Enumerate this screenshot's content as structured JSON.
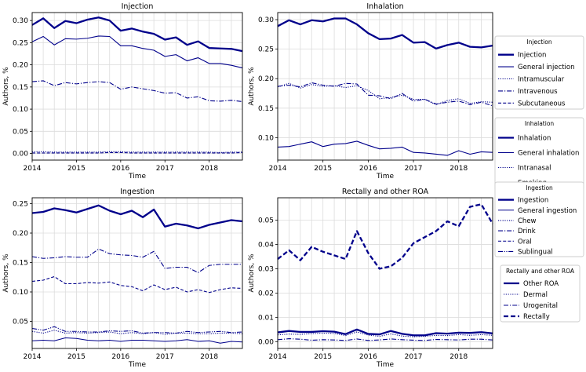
{
  "colors": {
    "series": "#00008b",
    "grid": "#dcdcdc",
    "frame": "#000000",
    "legend_border": "#cccccc"
  },
  "chart_data": [
    {
      "type": "line",
      "title": "Injection",
      "xlabel": "Time",
      "ylabel": "Authors, %",
      "xlim": [
        2014.0,
        2018.75
      ],
      "ylim": [
        -0.015,
        0.318
      ],
      "xticks": [
        2014,
        2015,
        2016,
        2017,
        2018
      ],
      "yticks": [
        0.0,
        0.05,
        0.1,
        0.15,
        0.2,
        0.25,
        0.3
      ],
      "ytick_labels": [
        "0.00",
        "0.05",
        "0.10",
        "0.15",
        "0.20",
        "0.25",
        "0.30"
      ],
      "x": [
        2014.0,
        2014.25,
        2014.5,
        2014.75,
        2015.0,
        2015.25,
        2015.5,
        2015.75,
        2016.0,
        2016.25,
        2016.5,
        2016.75,
        2017.0,
        2017.25,
        2017.5,
        2017.75,
        2018.0,
        2018.25,
        2018.5,
        2018.75
      ],
      "legend_title": "Injection",
      "series": [
        {
          "name": "Injection",
          "style": "bold",
          "values": [
            0.29,
            0.305,
            0.283,
            0.299,
            0.294,
            0.302,
            0.307,
            0.3,
            0.277,
            0.282,
            0.275,
            0.27,
            0.257,
            0.262,
            0.245,
            0.253,
            0.238,
            0.237,
            0.236,
            0.231
          ]
        },
        {
          "name": "General injection",
          "style": "solid",
          "values": [
            0.252,
            0.264,
            0.245,
            0.259,
            0.258,
            0.26,
            0.265,
            0.264,
            0.243,
            0.243,
            0.237,
            0.233,
            0.219,
            0.223,
            0.209,
            0.216,
            0.203,
            0.203,
            0.199,
            0.193
          ]
        },
        {
          "name": "Intramuscular",
          "style": "dotted",
          "values": [
            0.004,
            0.004,
            0.003,
            0.003,
            0.003,
            0.003,
            0.003,
            0.004,
            0.004,
            0.003,
            0.003,
            0.003,
            0.003,
            0.003,
            0.003,
            0.003,
            0.003,
            0.002,
            0.003,
            0.003
          ]
        },
        {
          "name": "Intravenous",
          "style": "dashdot",
          "values": [
            0.162,
            0.164,
            0.153,
            0.16,
            0.157,
            0.16,
            0.162,
            0.16,
            0.145,
            0.15,
            0.146,
            0.142,
            0.136,
            0.137,
            0.125,
            0.128,
            0.119,
            0.118,
            0.12,
            0.117
          ]
        },
        {
          "name": "Subcutaneous",
          "style": "dashed",
          "values": [
            0.001,
            0.001,
            0.001,
            0.001,
            0.001,
            0.001,
            0.001,
            0.002,
            0.002,
            0.001,
            0.001,
            0.001,
            0.001,
            0.001,
            0.001,
            0.001,
            0.001,
            0.001,
            0.001,
            0.002
          ]
        }
      ]
    },
    {
      "type": "line",
      "title": "Inhalation",
      "xlabel": "Time",
      "ylabel": "Authors, %",
      "xlim": [
        2014.0,
        2018.75
      ],
      "ylim": [
        0.062,
        0.312
      ],
      "xticks": [
        2014,
        2015,
        2016,
        2017,
        2018
      ],
      "yticks": [
        0.1,
        0.15,
        0.2,
        0.25,
        0.3
      ],
      "ytick_labels": [
        "0.10",
        "0.15",
        "0.20",
        "0.25",
        "0.30"
      ],
      "x": [
        2014.0,
        2014.25,
        2014.5,
        2014.75,
        2015.0,
        2015.25,
        2015.5,
        2015.75,
        2016.0,
        2016.25,
        2016.5,
        2016.75,
        2017.0,
        2017.25,
        2017.5,
        2017.75,
        2018.0,
        2018.25,
        2018.5,
        2018.75
      ],
      "legend_title": "Inhalation",
      "series": [
        {
          "name": "Inhalation",
          "style": "bold",
          "values": [
            0.289,
            0.299,
            0.292,
            0.299,
            0.297,
            0.302,
            0.302,
            0.292,
            0.277,
            0.267,
            0.268,
            0.274,
            0.261,
            0.262,
            0.251,
            0.257,
            0.261,
            0.254,
            0.253,
            0.256
          ]
        },
        {
          "name": "General inhalation",
          "style": "solid",
          "values": [
            0.084,
            0.085,
            0.089,
            0.093,
            0.085,
            0.089,
            0.09,
            0.094,
            0.087,
            0.081,
            0.082,
            0.084,
            0.075,
            0.074,
            0.072,
            0.07,
            0.078,
            0.072,
            0.076,
            0.075
          ]
        },
        {
          "name": "Intranasal",
          "style": "dotted",
          "values": [
            0.186,
            0.192,
            0.184,
            0.19,
            0.187,
            0.188,
            0.185,
            0.188,
            0.18,
            0.166,
            0.168,
            0.172,
            0.165,
            0.165,
            0.156,
            0.163,
            0.166,
            0.158,
            0.161,
            0.16
          ]
        },
        {
          "name": "Smoking",
          "style": "dashdot",
          "values": [
            0.187,
            0.189,
            0.186,
            0.193,
            0.189,
            0.187,
            0.192,
            0.191,
            0.172,
            0.171,
            0.166,
            0.175,
            0.162,
            0.165,
            0.157,
            0.16,
            0.162,
            0.156,
            0.16,
            0.154
          ]
        }
      ]
    },
    {
      "type": "line",
      "title": "Ingestion",
      "xlabel": "Time",
      "ylabel": "Authors, %",
      "xlim": [
        2014.0,
        2018.75
      ],
      "ylim": [
        0.004,
        0.26
      ],
      "xticks": [
        2014,
        2015,
        2016,
        2017,
        2018
      ],
      "yticks": [
        0.05,
        0.1,
        0.15,
        0.2,
        0.25
      ],
      "ytick_labels": [
        "0.05",
        "0.10",
        "0.15",
        "0.20",
        "0.25"
      ],
      "x": [
        2014.0,
        2014.25,
        2014.5,
        2014.75,
        2015.0,
        2015.25,
        2015.5,
        2015.75,
        2016.0,
        2016.25,
        2016.5,
        2016.75,
        2017.0,
        2017.25,
        2017.5,
        2017.75,
        2018.0,
        2018.25,
        2018.5,
        2018.75
      ],
      "legend_title": "Ingestion",
      "series": [
        {
          "name": "Ingestion",
          "style": "bold",
          "values": [
            0.234,
            0.236,
            0.242,
            0.239,
            0.235,
            0.241,
            0.247,
            0.238,
            0.232,
            0.238,
            0.227,
            0.24,
            0.211,
            0.216,
            0.213,
            0.208,
            0.214,
            0.218,
            0.222,
            0.22
          ]
        },
        {
          "name": "General ingestion",
          "style": "solid",
          "values": [
            0.017,
            0.018,
            0.017,
            0.022,
            0.021,
            0.018,
            0.017,
            0.018,
            0.016,
            0.018,
            0.018,
            0.017,
            0.016,
            0.017,
            0.019,
            0.016,
            0.017,
            0.013,
            0.016,
            0.015
          ]
        },
        {
          "name": "Chew",
          "style": "dotted",
          "values": [
            0.033,
            0.03,
            0.035,
            0.03,
            0.031,
            0.03,
            0.031,
            0.032,
            0.029,
            0.031,
            0.029,
            0.031,
            0.028,
            0.03,
            0.03,
            0.029,
            0.029,
            0.03,
            0.03,
            0.029
          ]
        },
        {
          "name": "Drink",
          "style": "dashdot",
          "values": [
            0.16,
            0.157,
            0.158,
            0.16,
            0.159,
            0.159,
            0.173,
            0.165,
            0.163,
            0.162,
            0.159,
            0.169,
            0.14,
            0.142,
            0.142,
            0.133,
            0.145,
            0.147,
            0.147,
            0.147
          ]
        },
        {
          "name": "Oral",
          "style": "dashed",
          "values": [
            0.118,
            0.12,
            0.126,
            0.114,
            0.114,
            0.116,
            0.115,
            0.117,
            0.111,
            0.109,
            0.102,
            0.112,
            0.104,
            0.108,
            0.1,
            0.104,
            0.099,
            0.104,
            0.107,
            0.106
          ]
        },
        {
          "name": "Sublingual",
          "style": "dashdotdot",
          "values": [
            0.038,
            0.035,
            0.041,
            0.033,
            0.033,
            0.032,
            0.032,
            0.034,
            0.033,
            0.034,
            0.03,
            0.031,
            0.031,
            0.03,
            0.033,
            0.031,
            0.032,
            0.033,
            0.031,
            0.032
          ]
        }
      ]
    },
    {
      "type": "line",
      "title": "Rectally and other ROA",
      "xlabel": "Time",
      "ylabel": "Authors, %",
      "xlim": [
        2014.0,
        2018.75
      ],
      "ylim": [
        -0.0028,
        0.0592
      ],
      "xticks": [
        2014,
        2015,
        2016,
        2017,
        2018
      ],
      "yticks": [
        0.0,
        0.01,
        0.02,
        0.03,
        0.04,
        0.05
      ],
      "ytick_labels": [
        "0.00",
        "0.01",
        "0.02",
        "0.03",
        "0.04",
        "0.05"
      ],
      "x": [
        2014.0,
        2014.25,
        2014.5,
        2014.75,
        2015.0,
        2015.25,
        2015.5,
        2015.75,
        2016.0,
        2016.25,
        2016.5,
        2016.75,
        2017.0,
        2017.25,
        2017.5,
        2017.75,
        2018.0,
        2018.25,
        2018.5,
        2018.75
      ],
      "legend_title": "Rectally and other ROA",
      "series": [
        {
          "name": "Other ROA",
          "style": "bold",
          "values": [
            0.0038,
            0.0044,
            0.004,
            0.004,
            0.0043,
            0.0041,
            0.0031,
            0.005,
            0.0032,
            0.003,
            0.0044,
            0.0032,
            0.0026,
            0.0026,
            0.0035,
            0.0033,
            0.0037,
            0.0036,
            0.0039,
            0.0034
          ]
        },
        {
          "name": "Dermal",
          "style": "dotted",
          "values": [
            0.0028,
            0.0031,
            0.003,
            0.0033,
            0.0035,
            0.0034,
            0.0025,
            0.004,
            0.0027,
            0.0022,
            0.0032,
            0.0023,
            0.002,
            0.0022,
            0.0026,
            0.0025,
            0.0029,
            0.0026,
            0.0029,
            0.0026
          ]
        },
        {
          "name": "Urogenital",
          "style": "dashdot",
          "values": [
            0.0008,
            0.0012,
            0.001,
            0.0006,
            0.0008,
            0.0007,
            0.0005,
            0.0011,
            0.0005,
            0.0007,
            0.0011,
            0.0008,
            0.0006,
            0.0005,
            0.0009,
            0.0008,
            0.0007,
            0.001,
            0.001,
            0.0007
          ]
        },
        {
          "name": "Rectally",
          "style": "boldashed",
          "values": [
            0.034,
            0.0376,
            0.0335,
            0.039,
            0.037,
            0.0355,
            0.034,
            0.0455,
            0.0365,
            0.03,
            0.031,
            0.0345,
            0.0405,
            0.043,
            0.0455,
            0.0495,
            0.0475,
            0.0555,
            0.0565,
            0.0485
          ]
        }
      ]
    }
  ]
}
